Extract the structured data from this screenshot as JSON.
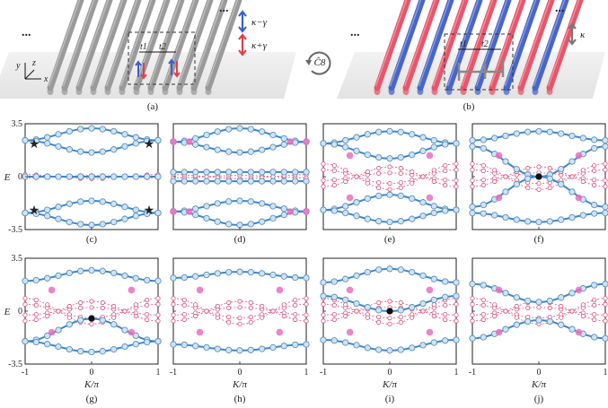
{
  "figure": {
    "top_panels": [
      {
        "label": "(a)",
        "ellipsis": "...",
        "legend": [
          {
            "text": "κ−γ",
            "color": "#3a5fcd"
          },
          {
            "text": "κ+γ",
            "color": "#e0404a"
          }
        ],
        "hopping": [
          "t1",
          "t2"
        ],
        "axes": [
          "y",
          "z",
          "x"
        ]
      },
      {
        "label": "(b)",
        "ellipsis": "...",
        "legend": [
          {
            "text": "κ",
            "color": "#777777"
          }
        ],
        "hopping": [
          "t1",
          "t2"
        ],
        "symmetry": "Ĉ8"
      }
    ],
    "ylabel": "E",
    "xlabel": "K/π",
    "yticks": [
      "3.5",
      "0",
      "-3.5"
    ],
    "xticks": [
      "-1",
      "0",
      "1"
    ],
    "panels": [
      "(c)",
      "(d)",
      "(e)",
      "(f)",
      "(g)",
      "(h)",
      "(i)",
      "(j)"
    ]
  },
  "colors": {
    "band": "#3d86c6",
    "circle_edge": "#5a8fc0",
    "circle_fill": "#cfe3f2",
    "imag": "#d9507a",
    "ep": "#e76fbe",
    "star": "#d1352b",
    "node": "#111111",
    "rod_gray": "#9a9a9a",
    "rod_red": "#e8556b",
    "rod_blue": "#4a65c8"
  },
  "chart_data": [
    {
      "type": "line",
      "panel": "(c)",
      "x": [
        -1,
        0,
        1
      ],
      "series": [
        {
          "values": [
            2.4,
            3.2,
            2.4
          ]
        },
        {
          "values": [
            2.4,
            1.6,
            2.4
          ]
        },
        {
          "values": [
            0,
            0,
            0
          ]
        },
        {
          "values": [
            -2.4,
            -1.6,
            -2.4
          ]
        },
        {
          "values": [
            -2.4,
            -3.2,
            -2.4
          ]
        }
      ],
      "xlabel": "",
      "ylabel": "E",
      "ylim": [
        -3.5,
        3.5
      ]
    },
    {
      "type": "line",
      "panel": "(d)",
      "x": [
        -1,
        0,
        1
      ],
      "series": [
        {
          "values": [
            2.3,
            3.2,
            2.3
          ]
        },
        {
          "values": [
            2.3,
            1.6,
            2.3
          ]
        },
        {
          "values": [
            0.3,
            0.3,
            0.3
          ]
        },
        {
          "values": [
            -0.3,
            -0.3,
            -0.3
          ]
        },
        {
          "values": [
            -2.3,
            -1.6,
            -2.3
          ]
        },
        {
          "values": [
            -2.3,
            -3.2,
            -2.3
          ]
        }
      ],
      "ylim": [
        -3.5,
        3.5
      ]
    },
    {
      "type": "line",
      "panel": "(e)",
      "x": [
        -1,
        0,
        1
      ],
      "series": [
        {
          "values": [
            2.2,
            3.0,
            2.2
          ]
        },
        {
          "values": [
            2.2,
            1.2,
            2.2
          ]
        },
        {
          "values": [
            -2.2,
            -1.2,
            -2.2
          ]
        },
        {
          "values": [
            -2.2,
            -3.0,
            -2.2
          ]
        }
      ],
      "ylim": [
        -3.5,
        3.5
      ]
    },
    {
      "type": "line",
      "panel": "(f)",
      "x": [
        -1,
        0,
        1
      ],
      "series": [
        {
          "values": [
            2.4,
            3.0,
            2.4
          ]
        },
        {
          "values": [
            2.0,
            0,
            2.0
          ]
        },
        {
          "values": [
            -2.0,
            0,
            -2.0
          ]
        },
        {
          "values": [
            -2.4,
            -3.0,
            -2.4
          ]
        }
      ],
      "ylim": [
        -3.5,
        3.5
      ]
    },
    {
      "type": "line",
      "panel": "(g)",
      "x": [
        -1,
        0,
        1
      ],
      "series": [
        {
          "values": [
            2.0,
            2.7,
            2.0
          ]
        },
        {
          "values": [
            -2.0,
            -0.5,
            -2.0
          ]
        },
        {
          "values": [
            -2.0,
            -2.7,
            -2.0
          ]
        }
      ],
      "ylim": [
        -3.5,
        3.5
      ]
    },
    {
      "type": "line",
      "panel": "(h)",
      "x": [
        -1,
        0,
        1
      ],
      "series": [
        {
          "values": [
            2.2,
            2.6,
            2.2
          ]
        },
        {
          "values": [
            -2.2,
            -2.6,
            -2.2
          ]
        }
      ],
      "ylim": [
        -3.5,
        3.5
      ]
    },
    {
      "type": "line",
      "panel": "(i)",
      "x": [
        -1,
        0,
        1
      ],
      "series": [
        {
          "values": [
            1.9,
            2.8,
            1.9
          ]
        },
        {
          "values": [
            1.0,
            0,
            1.0
          ]
        },
        {
          "values": [
            -1.9,
            -2.6,
            -1.9
          ]
        }
      ],
      "ylim": [
        -3.5,
        3.5
      ]
    },
    {
      "type": "line",
      "panel": "(j)",
      "x": [
        -1,
        0,
        1
      ],
      "series": [
        {
          "values": [
            1.8,
            0.6,
            1.8
          ]
        },
        {
          "values": [
            -1.8,
            -0.6,
            -1.8
          ]
        }
      ],
      "ylim": [
        -3.5,
        3.5
      ]
    }
  ]
}
